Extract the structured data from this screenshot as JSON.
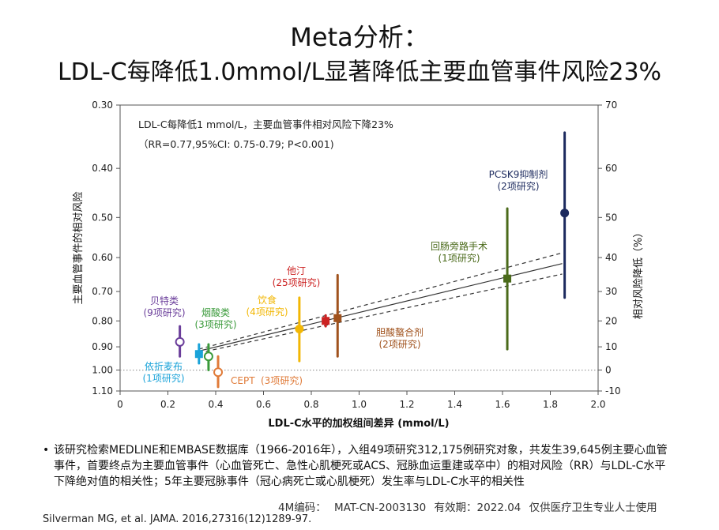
{
  "title": {
    "line1": "Meta分析：",
    "line2": "LDL-C每降低1.0mmol/L显著降低主要血管事件风险23%"
  },
  "chart_data": {
    "type": "scatter",
    "xlabel": "LDL-C水平的加权组间差异 (mmol/L)",
    "ylabel_left": "主要血管事件的相对风险",
    "ylabel_right": "相对风险降低（%）",
    "x_ticks": [
      "0",
      "0.2",
      "0.4",
      "0.6",
      "0.8",
      "1.0",
      "1.2",
      "1.4",
      "1.6",
      "1.8",
      "2.0"
    ],
    "xlim": [
      0,
      2.0
    ],
    "y_left_ticks": [
      "0.30",
      "0.40",
      "0.50",
      "0.60",
      "0.70",
      "0.80",
      "0.90",
      "1.00",
      "1.10"
    ],
    "y_right_ticks": [
      "70",
      "60",
      "50",
      "40",
      "30",
      "20",
      "10",
      "0",
      "-10"
    ],
    "ylim_rr": [
      0.3,
      1.1
    ],
    "annotation": {
      "line1": "LDL-C每降低1 mmol/L，主要血管事件相对风险下降23%",
      "line2": "（RR=0.77,95%CI: 0.75-0.79; P<0.001)"
    },
    "regression": {
      "slope_rr_per_mmol": 0.77,
      "ci_low": 0.75,
      "ci_high": 0.79,
      "x_start": 0.33,
      "x_end": 1.85
    },
    "groups": [
      {
        "name": "贝特类",
        "studies": "(9项研究)",
        "x": 0.25,
        "rr": 0.88,
        "ci": [
          0.82,
          0.94
        ],
        "marker": "open-circle",
        "color": "#6a3d9a"
      },
      {
        "name": "烟酸类",
        "studies": "(3项研究)",
        "x": 0.37,
        "rr": 0.94,
        "ci": [
          0.89,
          1.0
        ],
        "marker": "open-circle",
        "color": "#3a9a3a"
      },
      {
        "name": "饮食",
        "studies": "(4项研究)",
        "x": 0.75,
        "rr": 0.83,
        "ci": [
          0.72,
          0.96
        ],
        "marker": "filled-circle",
        "color": "#f2b705"
      },
      {
        "name": "他汀",
        "studies": "(25项研究)",
        "x": 0.86,
        "rr": 0.8,
        "ci": [
          0.78,
          0.82
        ],
        "marker": "square",
        "color": "#cc2222"
      },
      {
        "name": "胆酸螯合剂",
        "studies": "(2项研究)",
        "x": 0.91,
        "rr": 0.79,
        "ci": [
          0.65,
          0.94
        ],
        "marker": "square",
        "color": "#a0521d"
      },
      {
        "name": "回肠旁路手术",
        "studies": "(1项研究)",
        "x": 1.62,
        "rr": 0.66,
        "ci": [
          0.48,
          0.91
        ],
        "marker": "square",
        "color": "#4a6a1a"
      },
      {
        "name": "PCSK9抑制剂",
        "studies": "(2项研究)",
        "x": 1.86,
        "rr": 0.49,
        "ci": [
          0.34,
          0.72
        ],
        "marker": "filled-circle",
        "color": "#1c2a5e"
      },
      {
        "name": "依折麦布",
        "studies": "(1项研究)",
        "x": 0.33,
        "rr": 0.93,
        "ci": [
          0.89,
          0.97
        ],
        "marker": "square",
        "color": "#1aa3d9"
      },
      {
        "name": "CEPT",
        "studies": "(3项研究)",
        "x": 0.41,
        "rr": 1.01,
        "ci": [
          0.94,
          1.08
        ],
        "marker": "open-circle",
        "color": "#e07b39"
      }
    ]
  },
  "footnote": {
    "bullet": "•",
    "text": "该研究检索MEDLINE和EMBASE数据库（1966-2016年），入组49项研究312,175例研究对象，共发生39,645例主要心血管事件，首要终点为主要血管事件（心血管死亡、急性心肌梗死或ACS、冠脉血运重建或卒中）的相对风险（RR）与LDL-C水平下降绝对值的相关性；5年主要冠脉事件（冠心病死亡或心肌梗死）发生率与LDL-C水平的相关性"
  },
  "meta_line": "4M编码： MAT-CN-2003130 有效期：2022.04 仅供医疗卫生专业人士使用",
  "citation": "Silverman MG, et al. JAMA. 2016,27316(12)1289-97."
}
